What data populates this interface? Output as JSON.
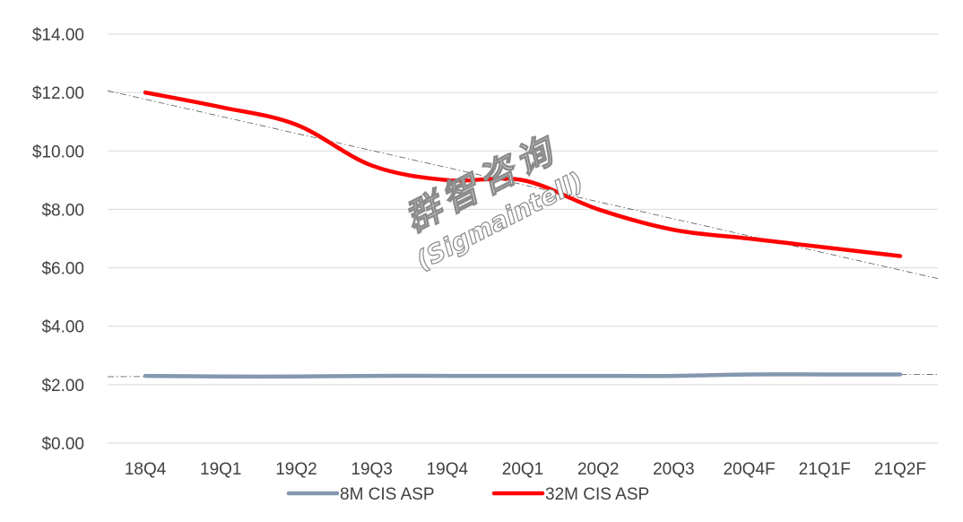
{
  "chart_data": {
    "type": "line",
    "categories": [
      "18Q4",
      "19Q1",
      "19Q2",
      "19Q3",
      "19Q4",
      "20Q1",
      "20Q2",
      "20Q3",
      "20Q4F",
      "21Q1F",
      "21Q2F"
    ],
    "series": [
      {
        "name": "8M CIS ASP",
        "color": "#8497b0",
        "values": [
          2.3,
          2.28,
          2.28,
          2.3,
          2.3,
          2.3,
          2.3,
          2.3,
          2.35,
          2.35,
          2.35
        ]
      },
      {
        "name": "32M CIS ASP",
        "color": "#ff0000",
        "values": [
          12.0,
          11.5,
          10.9,
          9.5,
          9.0,
          9.0,
          8.0,
          7.3,
          7.0,
          6.7,
          6.4
        ]
      }
    ],
    "trendlines": [
      {
        "series": "32M CIS ASP",
        "style": "dash-dot",
        "color": "#595959"
      },
      {
        "series": "8M CIS ASP",
        "style": "dash-dot",
        "color": "#595959"
      }
    ],
    "y_ticks": [
      "$0.00",
      "$2.00",
      "$4.00",
      "$6.00",
      "$8.00",
      "$10.00",
      "$12.00",
      "$14.00"
    ],
    "ylim": [
      0,
      14
    ],
    "grid": true,
    "legend": "bottom",
    "watermark": [
      "群智咨询",
      "(Sigmaintell)"
    ]
  }
}
